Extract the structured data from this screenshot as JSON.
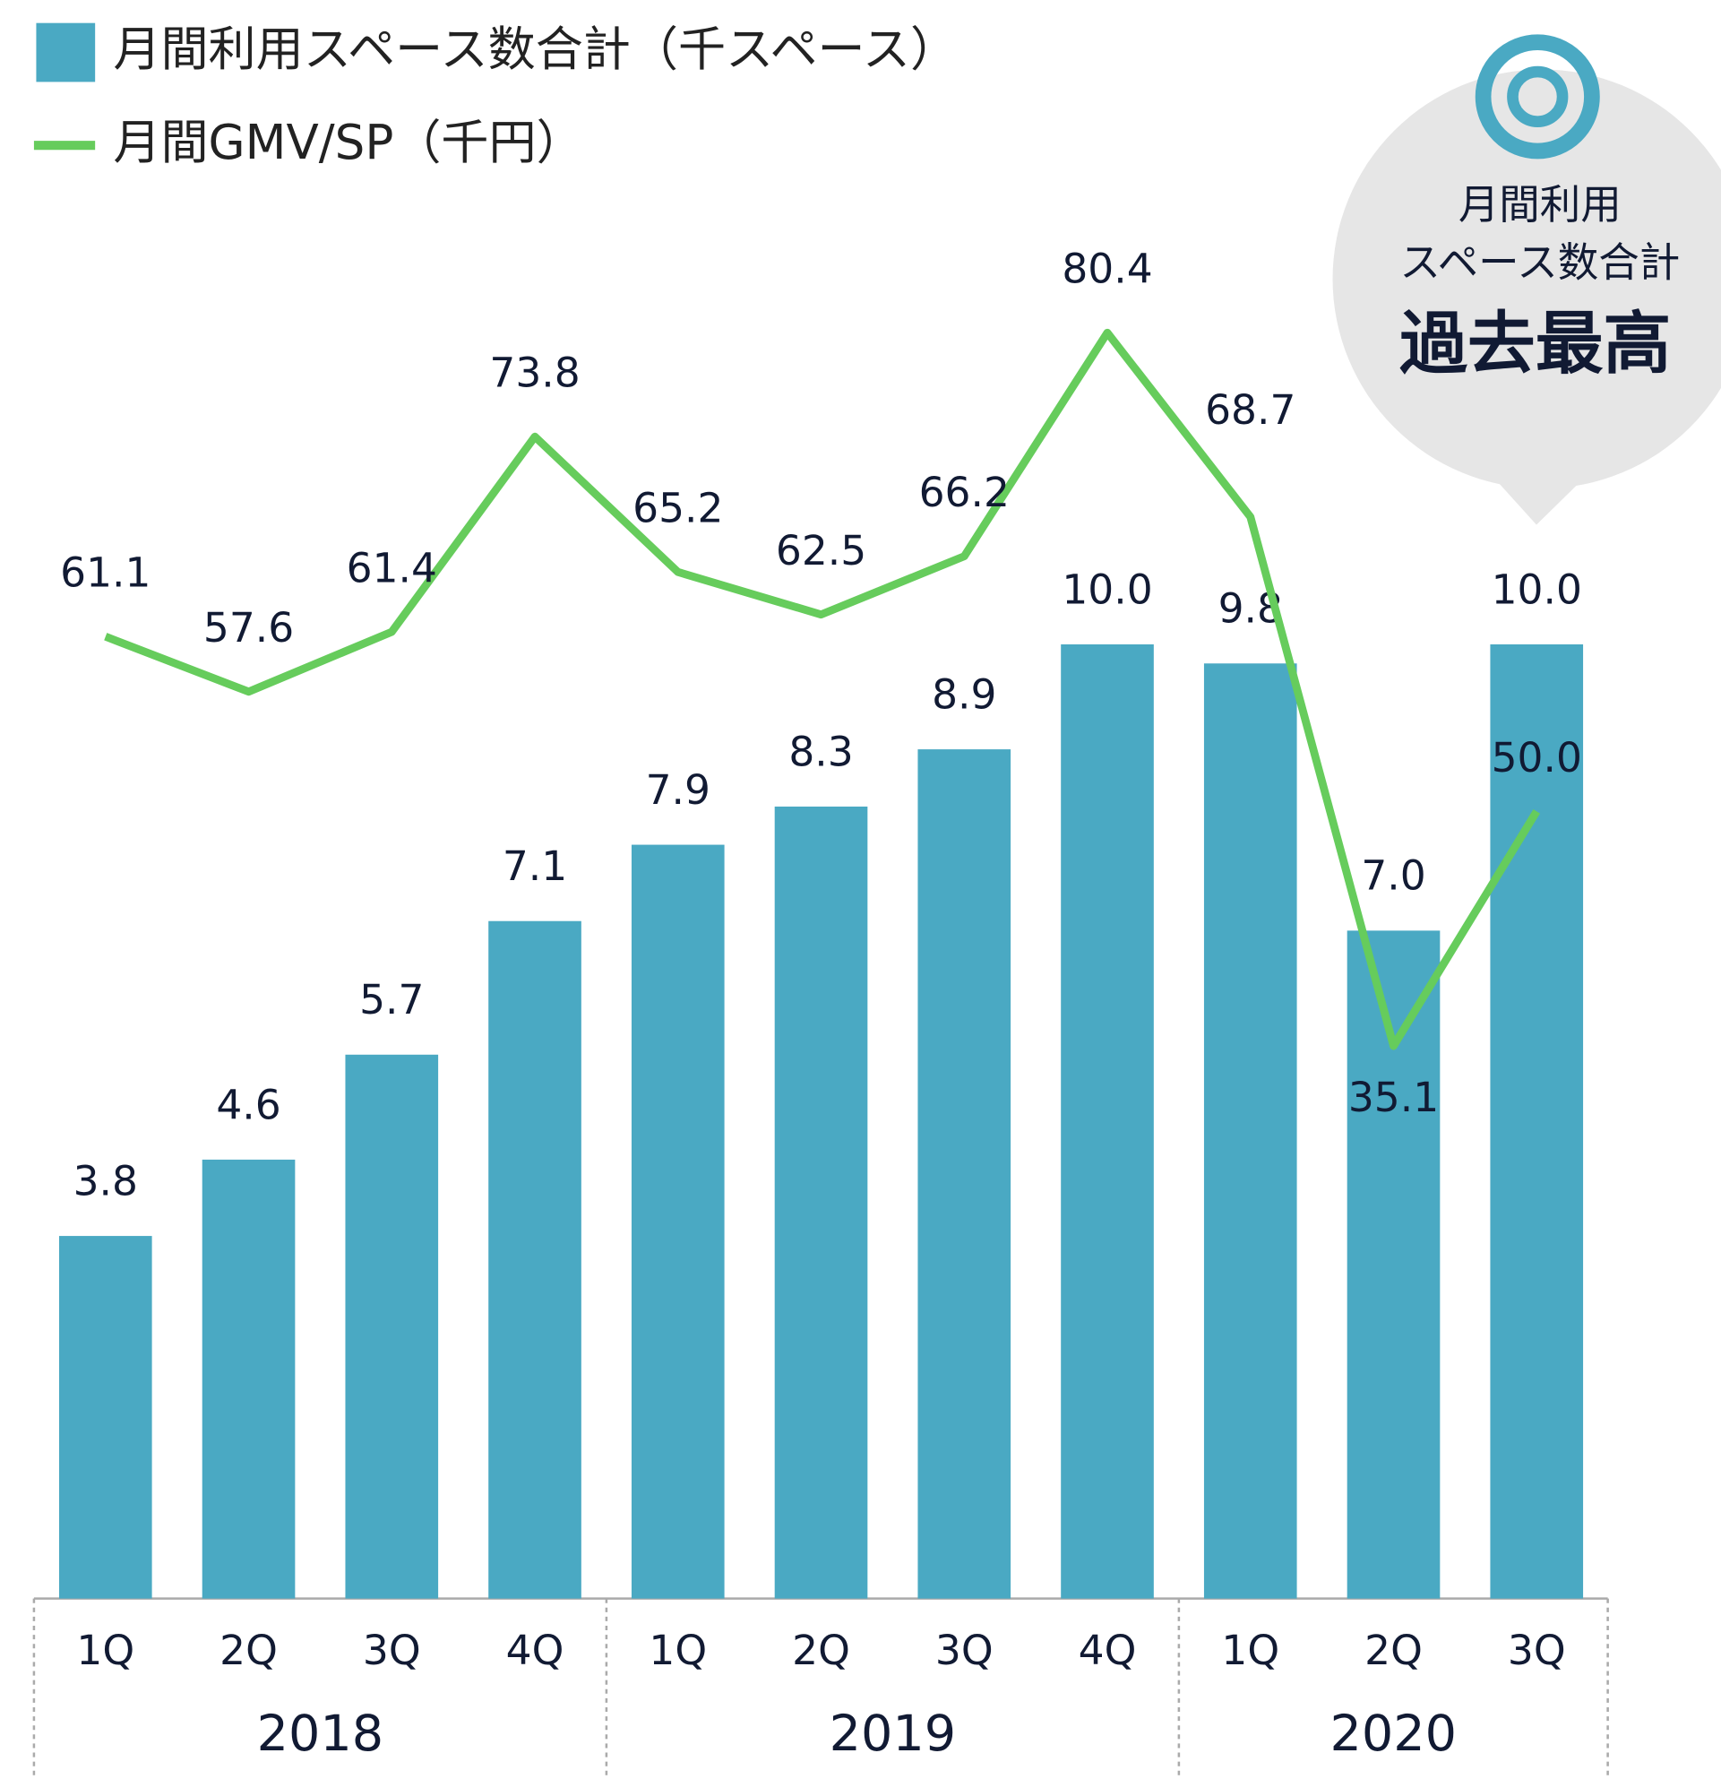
{
  "chart_data": {
    "type": "bar-line",
    "categories": [
      "1Q",
      "2Q",
      "3Q",
      "4Q",
      "1Q",
      "2Q",
      "3Q",
      "4Q",
      "1Q",
      "2Q",
      "3Q"
    ],
    "groups": [
      {
        "label": "2018",
        "categories": [
          0,
          1,
          2,
          3
        ]
      },
      {
        "label": "2019",
        "categories": [
          4,
          5,
          6,
          7
        ]
      },
      {
        "label": "2020",
        "categories": [
          8,
          9,
          10
        ]
      }
    ],
    "series": [
      {
        "name": "月間利用スペース数合計（千スペース）",
        "type": "bar",
        "color": "#4aa9c3",
        "values": [
          3.8,
          4.6,
          5.7,
          7.1,
          7.9,
          8.3,
          8.9,
          10.0,
          9.8,
          7.0,
          10.0
        ],
        "value_labels": [
          "3.8",
          "4.6",
          "5.7",
          "7.1",
          "7.9",
          "8.3",
          "8.9",
          "10.0",
          "9.8",
          "7.0",
          "10.0"
        ]
      },
      {
        "name": "月間GMV/SP（千円）",
        "type": "line",
        "axis": "y2",
        "color": "#66cc5c",
        "values": [
          61.1,
          57.6,
          61.4,
          73.8,
          65.2,
          62.5,
          66.2,
          80.4,
          68.7,
          35.1,
          50.0
        ],
        "value_labels": [
          "61.1",
          "57.6",
          "61.4",
          "73.8",
          "65.2",
          "62.5",
          "66.2",
          "80.4",
          "68.7",
          "35.1",
          "50.0"
        ]
      }
    ],
    "ylim": [
      0,
      16.5
    ],
    "y2lim": [
      0,
      100
    ],
    "callout": {
      "lines": [
        "月間利用",
        "スペース数合計"
      ],
      "highlight": "過去最高"
    }
  }
}
